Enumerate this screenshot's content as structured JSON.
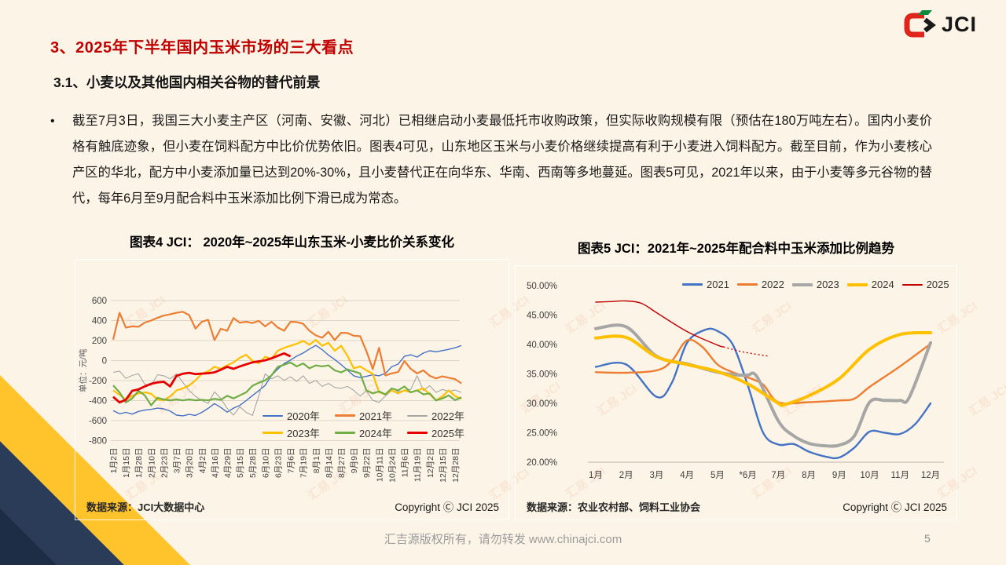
{
  "slide": {
    "title": "3、2025年下半年国内玉米市场的三大看点",
    "subtitle": "3.1、小麦以及其他国内相关谷物的替代前景",
    "bullet_glyph": "•",
    "bullet_text": "截至7月3日，我国三大小麦主产区（河南、安徽、河北）已相继启动小麦最低托市收购政策，但实际收购规模有限（预估在180万吨左右）。国内小麦价格有触底迹象，但小麦在饲料配方中比价优势依旧。图表4可见，山东地区玉米与小麦价格继续提高有利于小麦进入饲料配方。截至目前，作为小麦核心产区的华北，配方中小麦添加量已达到20%-30%，且小麦替代正在向华东、华南、西南等多地蔓延。图表5可见，2021年以来，由于小麦等多元谷物的替代，每年6月至9月配合料中玉米添加比例下滑已成为常态。",
    "footer_text": "汇吉源版权所有，请勿转发 www.chinajci.com",
    "page_number": "5",
    "logo_text": "JCI",
    "watermark_text": "汇易 JCI"
  },
  "colors": {
    "background": "#fcf4e7",
    "title_red": "#c00000",
    "decor_yellow": "#ffc32b",
    "decor_navy": "#2a3c57",
    "decor_navy_dark": "#1c2d45",
    "gridline": "#ded7c8",
    "axis_text": "#404040"
  },
  "chart_data": [
    {
      "type": "line",
      "title": "图表4  JCI：  2020年~2025年山东玉米-小麦比价关系变化",
      "ylabel": "单位：元/吨",
      "ylim": [
        -800,
        600
      ],
      "yticks": [
        600,
        400,
        200,
        0,
        -200,
        -400,
        -600,
        -800
      ],
      "grid": true,
      "legend_position": "inside-bottom-right",
      "x_step": 0.5,
      "categories": [
        "1月2日",
        "1月15日",
        "1月28日",
        "2月10日",
        "2月23日",
        "3月7日",
        "3月20日",
        "4月2日",
        "4月16日",
        "4月29日",
        "5月15日",
        "5月28日",
        "6月10日",
        "6月23日",
        "7月6日",
        "7月19日",
        "8月1日",
        "8月14日",
        "8月27日",
        "9月9日",
        "9月22日",
        "10月11日",
        "10月24日",
        "11月6日",
        "11月19日",
        "12月2日",
        "12月15日",
        "12月28日"
      ],
      "series": [
        {
          "name": "2020年",
          "color": "#4472c4",
          "width": 1.4,
          "values": [
            -500,
            -532,
            -518,
            -535,
            -508,
            -495,
            -488,
            -475,
            -482,
            -505,
            -545,
            -552,
            -538,
            -548,
            -518,
            -478,
            -430,
            -468,
            -515,
            -475,
            -448,
            -400,
            -350,
            -300,
            -248,
            -150,
            -85,
            -30,
            5,
            45,
            75,
            115,
            152,
            110,
            55,
            10,
            -40,
            -95,
            -152,
            -170,
            -158,
            -142,
            -152,
            -128,
            -62,
            -35,
            42,
            58,
            35,
            75,
            98,
            88,
            100,
            112,
            128,
            150
          ]
        },
        {
          "name": "2021年",
          "color": "#ed7d31",
          "width": 2.2,
          "values": [
            210,
            478,
            330,
            342,
            338,
            380,
            400,
            428,
            450,
            462,
            478,
            488,
            455,
            320,
            388,
            408,
            205,
            318,
            298,
            425,
            378,
            388,
            375,
            398,
            342,
            388,
            330,
            298,
            388,
            385,
            368,
            298,
            252,
            228,
            288,
            205,
            278,
            275,
            248,
            245,
            95,
            -85,
            128,
            -148,
            -128,
            -115,
            -5,
            -82,
            -128,
            -98,
            -152,
            -178,
            -158,
            -172,
            -185,
            -228
          ]
        },
        {
          "name": "2022年",
          "color": "#a6a6a6",
          "width": 1.1,
          "values": [
            -118,
            -105,
            -178,
            -148,
            -132,
            -238,
            -248,
            -142,
            -152,
            -182,
            -132,
            -218,
            -298,
            -358,
            -398,
            -428,
            -312,
            -378,
            -478,
            -545,
            -462,
            -518,
            -548,
            -352,
            -132,
            -182,
            -152,
            -198,
            -162,
            -208,
            -152,
            -228,
            -198,
            -258,
            -228,
            -268,
            -278,
            -258,
            -298,
            -355,
            -302,
            -398,
            -418,
            -352,
            -302,
            -312,
            -298,
            -288,
            -152,
            -298,
            -252,
            -318,
            -288,
            -308,
            -295,
            -318
          ]
        },
        {
          "name": "2023年",
          "color": "#ffc000",
          "width": 2.2,
          "values": [
            -298,
            -342,
            -388,
            -352,
            -328,
            -318,
            -332,
            -388,
            -398,
            -358,
            -298,
            -278,
            -248,
            -198,
            -132,
            -108,
            -62,
            -82,
            -48,
            -18,
            28,
            58,
            -2,
            -28,
            38,
            18,
            98,
            128,
            148,
            168,
            198,
            158,
            208,
            148,
            178,
            98,
            148,
            48,
            -78,
            -58,
            -98,
            -132,
            -318,
            -338,
            -298,
            -328,
            -298,
            -318,
            -298,
            -278,
            -338,
            -398,
            -358,
            -298,
            -355,
            -382
          ]
        },
        {
          "name": "2024年",
          "color": "#70ad47",
          "width": 2.2,
          "values": [
            -248,
            -318,
            -418,
            -378,
            -302,
            -348,
            -448,
            -372,
            -388,
            -398,
            -388,
            -398,
            -388,
            -398,
            -392,
            -398,
            -382,
            -392,
            -352,
            -378,
            -348,
            -318,
            -252,
            -222,
            -198,
            -148,
            -62,
            -42,
            -18,
            -58,
            -28,
            -78,
            -48,
            -58,
            -48,
            -98,
            -118,
            -88,
            -108,
            -128,
            -298,
            -328,
            -308,
            -338,
            -278,
            -298,
            -258,
            -318,
            -298,
            -338,
            -328,
            -398,
            -378,
            -348,
            -395,
            -368
          ]
        },
        {
          "name": "2025年",
          "color": "#e60000",
          "width": 2.8,
          "values": [
            -362,
            -418,
            -392,
            -302,
            -288,
            -258,
            -232,
            -218,
            -212,
            -258,
            -152,
            -132,
            -122,
            -135,
            -130,
            -126,
            -118,
            -92,
            -62,
            -82,
            -58,
            -38,
            -18,
            -8,
            2,
            22,
            48,
            72,
            42
          ]
        }
      ],
      "source_note": "数据来源：JCI大数据中心",
      "copyright": "Copyright Ⓒ JCI 2025"
    },
    {
      "type": "line",
      "title": "图表5   JCI：2021年~2025年配合料中玉米添加比例趋势",
      "ylim": [
        20,
        50
      ],
      "ytick_labels": [
        "50.00%",
        "45.00%",
        "40.00%",
        "35.00%",
        "30.00%",
        "25.00%",
        "20.00%"
      ],
      "ytick_values": [
        50,
        45,
        40,
        35,
        30,
        25,
        20
      ],
      "grid": false,
      "legend_position": "top",
      "categories": [
        "1月",
        "2月",
        "3月",
        "4月",
        "5月",
        "*6月",
        "7月",
        "8月",
        "9月",
        "10月",
        "11月",
        "12月"
      ],
      "series": [
        {
          "name": "2021",
          "color": "#4472c4",
          "width": 2.4,
          "x": [
            1,
            2,
            3,
            3.5,
            4,
            4.6,
            5,
            5.5,
            6,
            6.5,
            7,
            7.5,
            8,
            8.6,
            9,
            9.5,
            10,
            10.5,
            11,
            11.5,
            12
          ],
          "y": [
            36.2,
            36.6,
            31.1,
            33.5,
            40.3,
            42.5,
            42.3,
            40.0,
            33.0,
            25.0,
            23.0,
            23.1,
            21.8,
            20.9,
            20.8,
            22.5,
            25.2,
            25.0,
            24.8,
            26.5,
            30.0
          ]
        },
        {
          "name": "2022",
          "color": "#ed7d31",
          "width": 2.4,
          "x": [
            1,
            2,
            3,
            3.5,
            4,
            4.5,
            5,
            5.5,
            6,
            6.5,
            7,
            8,
            9,
            9.5,
            10,
            11,
            12
          ],
          "y": [
            35.3,
            35.2,
            35.6,
            37.2,
            40.7,
            39.6,
            36.6,
            35.3,
            34.4,
            33.2,
            30.2,
            30.2,
            30.5,
            30.8,
            32.8,
            36.3,
            40.1
          ]
        },
        {
          "name": "2023",
          "color": "#a6a6a6",
          "width": 4,
          "x": [
            1,
            2,
            3,
            4,
            5,
            5.7,
            6,
            6.3,
            7,
            7.5,
            8,
            8.5,
            9,
            9.5,
            10,
            10.5,
            11,
            11.3,
            12
          ],
          "y": [
            42.7,
            43.0,
            38.0,
            36.7,
            35.3,
            34.8,
            34.8,
            34.5,
            27.0,
            24.5,
            23.2,
            22.8,
            22.9,
            24.5,
            30.2,
            30.5,
            30.5,
            31.0,
            40.3
          ]
        },
        {
          "name": "2024",
          "color": "#ffc000",
          "width": 4,
          "x": [
            1,
            2,
            3,
            4,
            5,
            6,
            7,
            7.2,
            8,
            9,
            10,
            11,
            12
          ],
          "y": [
            41.1,
            41.2,
            37.9,
            36.6,
            35.4,
            33.3,
            30.0,
            29.8,
            31.3,
            34.2,
            39.2,
            41.7,
            42.0
          ]
        },
        {
          "name": "2025",
          "color": "#c00000",
          "width": 1.4,
          "x": [
            1,
            1.5,
            2,
            2.5,
            3,
            4,
            5,
            5.2
          ],
          "y": [
            47.2,
            47.3,
            47.4,
            47.0,
            45.4,
            42.2,
            39.9,
            39.6
          ],
          "forecast_x": [
            5.2,
            5.7,
            6.2,
            6.7
          ],
          "forecast_y": [
            39.6,
            38.9,
            38.4,
            38.0
          ]
        }
      ],
      "source_note": "数据来源：农业农村部、饲料工业协会",
      "copyright": "Copyright Ⓒ JCI 2025"
    }
  ]
}
